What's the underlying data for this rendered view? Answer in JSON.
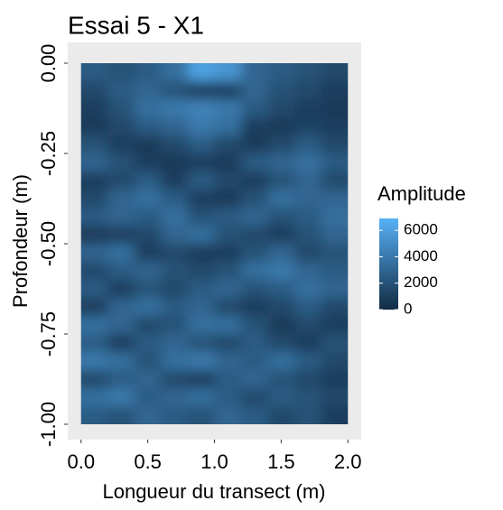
{
  "chart_data": {
    "type": "heatmap",
    "title": "Essai 5 - X1",
    "x_label": "Longueur du transect (m)",
    "y_label": "Profondeur (m)",
    "legend_title": "Amplitude",
    "x": [
      0.1,
      0.3,
      0.5,
      0.7,
      0.9,
      1.1,
      1.3,
      1.5,
      1.7,
      1.9
    ],
    "y": [
      -0.025,
      -0.075,
      -0.125,
      -0.175,
      -0.225,
      -0.275,
      -0.325,
      -0.375,
      -0.425,
      -0.475,
      -0.525,
      -0.575,
      -0.625,
      -0.675,
      -0.725,
      -0.775,
      -0.825,
      -0.875,
      -0.925,
      -0.975
    ],
    "z": [
      [
        2500,
        2000,
        2500,
        3500,
        6000,
        5500,
        3000,
        2500,
        2000,
        1500
      ],
      [
        1500,
        2500,
        3000,
        2000,
        800,
        1000,
        3000,
        2000,
        1500,
        1000
      ],
      [
        1000,
        2000,
        3500,
        4000,
        4500,
        4000,
        2500,
        1500,
        1000,
        800
      ],
      [
        800,
        1500,
        2500,
        3000,
        4000,
        3500,
        1000,
        800,
        1200,
        1000
      ],
      [
        2000,
        1000,
        800,
        1500,
        2500,
        1500,
        800,
        1500,
        2500,
        1500
      ],
      [
        3000,
        2000,
        1000,
        800,
        1000,
        800,
        2500,
        3000,
        3500,
        2500
      ],
      [
        1000,
        1500,
        2500,
        1000,
        2500,
        1500,
        1000,
        2000,
        3000,
        1500
      ],
      [
        1500,
        3000,
        3500,
        2500,
        1000,
        800,
        2000,
        3500,
        3000,
        3000
      ],
      [
        2500,
        3000,
        2500,
        3500,
        2000,
        2500,
        3000,
        2000,
        2500,
        3500
      ],
      [
        800,
        1000,
        1500,
        3000,
        3500,
        2000,
        1500,
        1000,
        2000,
        3000
      ],
      [
        3000,
        3500,
        1000,
        1500,
        800,
        1000,
        2000,
        3000,
        1500,
        2000
      ],
      [
        1500,
        2500,
        3000,
        2000,
        1500,
        2000,
        3500,
        4000,
        3000,
        2500
      ],
      [
        2500,
        1000,
        2000,
        1500,
        2500,
        3000,
        2000,
        2500,
        3500,
        3000
      ],
      [
        1000,
        3000,
        3500,
        2500,
        3000,
        1500,
        1000,
        1500,
        2500,
        1500
      ],
      [
        3500,
        3000,
        1500,
        2000,
        3500,
        3500,
        2000,
        800,
        1500,
        1000
      ],
      [
        2500,
        1000,
        2500,
        3000,
        2000,
        1500,
        2500,
        1500,
        1000,
        2000
      ],
      [
        4000,
        3500,
        2000,
        3500,
        4000,
        3000,
        2500,
        3500,
        2500,
        1500
      ],
      [
        1500,
        2500,
        3000,
        1500,
        1000,
        2500,
        3000,
        2000,
        1500,
        1000
      ],
      [
        3500,
        4000,
        2500,
        3000,
        3500,
        2500,
        1500,
        2500,
        2000,
        1500
      ],
      [
        2500,
        2000,
        3000,
        2500,
        2000,
        3000,
        2500,
        1500,
        2000,
        1000
      ]
    ],
    "low_color": "#132B43",
    "high_color": "#56B1F7",
    "panel_color": "#EBEBEB",
    "xlim": [
      -0.1,
      2.1
    ],
    "ylim": [
      -1.0425,
      0.0575
    ],
    "zlim": [
      0,
      6900
    ],
    "xticks": [
      {
        "value": 0,
        "label": "0.0"
      },
      {
        "value": 0.5,
        "label": "0.5"
      },
      {
        "value": 1,
        "label": "1.0"
      },
      {
        "value": 1.5,
        "label": "1.5"
      },
      {
        "value": 2,
        "label": "2.0"
      }
    ],
    "yticks": [
      {
        "value": 0,
        "label": "0.00"
      },
      {
        "value": -0.25,
        "label": "-0.25"
      },
      {
        "value": -0.5,
        "label": "-0.50"
      },
      {
        "value": -0.75,
        "label": "-0.75"
      },
      {
        "value": -1,
        "label": "-1.00"
      }
    ],
    "zticks": [
      0,
      2000,
      4000,
      6000
    ]
  }
}
